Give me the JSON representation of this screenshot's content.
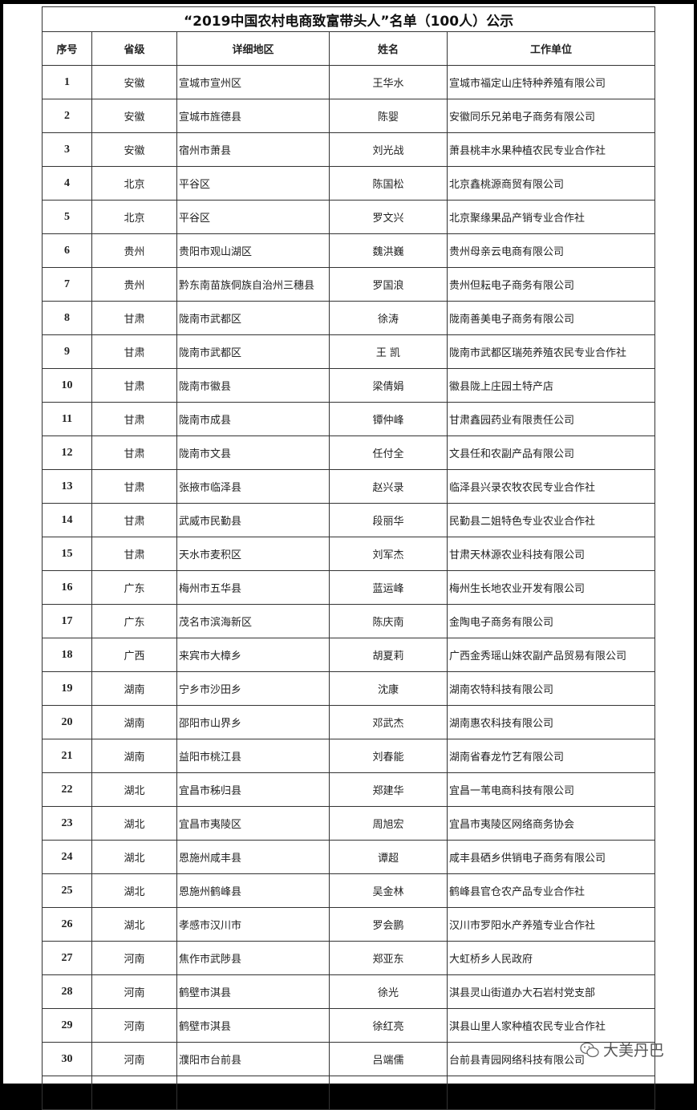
{
  "title": "“2019中国农村电商致富带头人”名单（100人）公示",
  "headers": [
    "序号",
    "省级",
    "详细地区",
    "姓名",
    "工作单位"
  ],
  "rows": [
    [
      "1",
      "安徽",
      "宣城市宣州区",
      "王华水",
      "宣城市福定山庄特种养殖有限公司"
    ],
    [
      "2",
      "安徽",
      "宣城市旌德县",
      "陈婴",
      "安徽同乐兄弟电子商务有限公司"
    ],
    [
      "3",
      "安徽",
      "宿州市萧县",
      "刘光战",
      "萧县桃丰水果种植农民专业合作社"
    ],
    [
      "4",
      "北京",
      "平谷区",
      "陈国松",
      "北京鑫桃源商贸有限公司"
    ],
    [
      "5",
      "北京",
      "平谷区",
      "罗文兴",
      "北京聚缘果品产销专业合作社"
    ],
    [
      "6",
      "贵州",
      "贵阳市观山湖区",
      "魏洪巍",
      "贵州母亲云电商有限公司"
    ],
    [
      "7",
      "贵州",
      "黔东南苗族侗族自治州三穗县",
      "罗国浪",
      "贵州但耘电子商务有限公司"
    ],
    [
      "8",
      "甘肃",
      "陇南市武都区",
      "徐涛",
      "陇南善美电子商务有限公司"
    ],
    [
      "9",
      "甘肃",
      "陇南市武都区",
      "王 凯",
      "陇南市武都区瑞苑养殖农民专业合作社"
    ],
    [
      "10",
      "甘肃",
      "陇南市徽县",
      "梁倩娟",
      "徽县陇上庄园土特产店"
    ],
    [
      "11",
      "甘肃",
      "陇南市成县",
      "镡仲峰",
      "甘肃鑫园药业有限责任公司"
    ],
    [
      "12",
      "甘肃",
      "陇南市文县",
      "任付全",
      "文县任和农副产品有限公司"
    ],
    [
      "13",
      "甘肃",
      "张掖市临泽县",
      "赵兴录",
      "临泽县兴录农牧农民专业合作社"
    ],
    [
      "14",
      "甘肃",
      "武威市民勤县",
      "段丽华",
      "民勤县二姐特色专业农业合作社"
    ],
    [
      "15",
      "甘肃",
      "天水市麦积区",
      "刘军杰",
      "甘肃天林源农业科技有限公司"
    ],
    [
      "16",
      "广东",
      "梅州市五华县",
      "蓝运峰",
      "梅州生长地农业开发有限公司"
    ],
    [
      "17",
      "广东",
      "茂名市滨海新区",
      "陈庆南",
      "金陶电子商务有限公司"
    ],
    [
      "18",
      "广西",
      "来宾市大樟乡",
      "胡夏莉",
      "广西金秀瑶山妹农副产品贸易有限公司"
    ],
    [
      "19",
      "湖南",
      "宁乡市沙田乡",
      "沈康",
      "湖南农特科技有限公司"
    ],
    [
      "20",
      "湖南",
      "邵阳市山界乡",
      "邓武杰",
      "湖南惠农科技有限公司"
    ],
    [
      "21",
      "湖南",
      "益阳市桃江县",
      "刘春能",
      "湖南省春龙竹艺有限公司"
    ],
    [
      "22",
      "湖北",
      "宜昌市秭归县",
      "郑建华",
      "宜昌一苇电商科技有限公司"
    ],
    [
      "23",
      "湖北",
      "宜昌市夷陵区",
      "周旭宏",
      "宜昌市夷陵区网络商务协会"
    ],
    [
      "24",
      "湖北",
      "恩施州咸丰县",
      "谭超",
      "咸丰县硒乡供销电子商务有限公司"
    ],
    [
      "25",
      "湖北",
      "恩施州鹤峰县",
      "吴金林",
      "鹤峰县官仓农产品专业合作社"
    ],
    [
      "26",
      "湖北",
      "孝感市汉川市",
      "罗会鹏",
      "汉川市罗阳水产养殖专业合作社"
    ],
    [
      "27",
      "河南",
      "焦作市武陟县",
      "郑亚东",
      "大虹桥乡人民政府"
    ],
    [
      "28",
      "河南",
      "鹤壁市淇县",
      "徐光",
      "淇县灵山街道办大石岩村党支部"
    ],
    [
      "29",
      "河南",
      "鹤壁市淇县",
      "徐红亮",
      "淇县山里人家种植农民专业合作社"
    ],
    [
      "30",
      "河南",
      "濮阳市台前县",
      "吕端儒",
      "台前县青园网络科技有限公司"
    ]
  ],
  "watermark": {
    "text": "大美丹巴",
    "icon": "wechat-icon"
  }
}
